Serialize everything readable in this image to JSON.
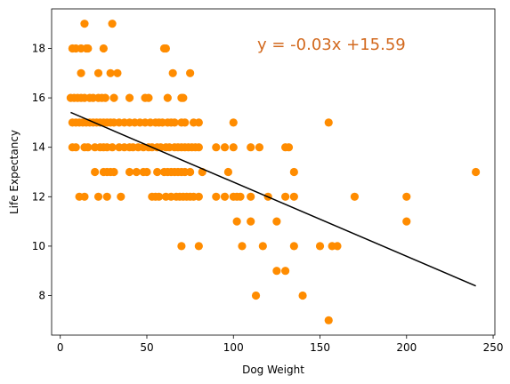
{
  "chart_data": {
    "type": "scatter",
    "title": "",
    "xlabel": "Dog Weight",
    "ylabel": "Life Expectancy",
    "xlim": [
      -5,
      251
    ],
    "ylim": [
      6.4,
      19.6
    ],
    "xticks": [
      0,
      50,
      100,
      150,
      200,
      250
    ],
    "yticks": [
      8,
      10,
      12,
      14,
      16,
      18
    ],
    "grid": false,
    "point_color": "#ff8c00",
    "line_color": "#000000",
    "annotation": {
      "text": "y = -0.03x +15.59",
      "color": "#d2691e"
    },
    "regression": {
      "slope": -0.03,
      "intercept": 15.59,
      "x_range": [
        6,
        240
      ]
    },
    "points": [
      [
        7,
        18
      ],
      [
        9,
        18
      ],
      [
        12,
        18
      ],
      [
        15,
        18
      ],
      [
        16,
        18
      ],
      [
        14,
        19
      ],
      [
        30,
        19
      ],
      [
        25,
        18
      ],
      [
        60,
        18
      ],
      [
        61,
        18
      ],
      [
        12,
        17
      ],
      [
        22,
        17
      ],
      [
        29,
        17
      ],
      [
        33,
        17
      ],
      [
        65,
        17
      ],
      [
        75,
        17
      ],
      [
        6,
        16
      ],
      [
        8,
        16
      ],
      [
        10,
        16
      ],
      [
        12,
        16
      ],
      [
        14,
        16
      ],
      [
        17,
        16
      ],
      [
        19,
        16
      ],
      [
        22,
        16
      ],
      [
        24,
        16
      ],
      [
        26,
        16
      ],
      [
        31,
        16
      ],
      [
        40,
        16
      ],
      [
        49,
        16
      ],
      [
        51,
        16
      ],
      [
        62,
        16
      ],
      [
        70,
        16
      ],
      [
        71,
        16
      ],
      [
        7,
        15
      ],
      [
        9,
        15
      ],
      [
        11,
        15
      ],
      [
        13,
        15
      ],
      [
        15,
        15
      ],
      [
        17,
        15
      ],
      [
        19,
        15
      ],
      [
        21,
        15
      ],
      [
        23,
        15
      ],
      [
        25,
        15
      ],
      [
        27,
        15
      ],
      [
        29,
        15
      ],
      [
        31,
        15
      ],
      [
        34,
        15
      ],
      [
        37,
        15
      ],
      [
        40,
        15
      ],
      [
        43,
        15
      ],
      [
        46,
        15
      ],
      [
        49,
        15
      ],
      [
        52,
        15
      ],
      [
        55,
        15
      ],
      [
        57,
        15
      ],
      [
        59,
        15
      ],
      [
        62,
        15
      ],
      [
        64,
        15
      ],
      [
        66,
        15
      ],
      [
        70,
        15
      ],
      [
        72,
        15
      ],
      [
        77,
        15
      ],
      [
        80,
        15
      ],
      [
        100,
        15
      ],
      [
        155,
        15
      ],
      [
        7,
        14
      ],
      [
        9,
        14
      ],
      [
        14,
        14
      ],
      [
        16,
        14
      ],
      [
        20,
        14
      ],
      [
        23,
        14
      ],
      [
        25,
        14
      ],
      [
        27,
        14
      ],
      [
        30,
        14
      ],
      [
        34,
        14
      ],
      [
        37,
        14
      ],
      [
        40,
        14
      ],
      [
        42,
        14
      ],
      [
        45,
        14
      ],
      [
        48,
        14
      ],
      [
        51,
        14
      ],
      [
        53,
        14
      ],
      [
        56,
        14
      ],
      [
        58,
        14
      ],
      [
        61,
        14
      ],
      [
        63,
        14
      ],
      [
        66,
        14
      ],
      [
        68,
        14
      ],
      [
        70,
        14
      ],
      [
        72,
        14
      ],
      [
        74,
        14
      ],
      [
        76,
        14
      ],
      [
        78,
        14
      ],
      [
        80,
        14
      ],
      [
        90,
        14
      ],
      [
        95,
        14
      ],
      [
        100,
        14
      ],
      [
        110,
        14
      ],
      [
        115,
        14
      ],
      [
        130,
        14
      ],
      [
        132,
        14
      ],
      [
        20,
        13
      ],
      [
        25,
        13
      ],
      [
        27,
        13
      ],
      [
        29,
        13
      ],
      [
        31,
        13
      ],
      [
        40,
        13
      ],
      [
        44,
        13
      ],
      [
        48,
        13
      ],
      [
        50,
        13
      ],
      [
        56,
        13
      ],
      [
        60,
        13
      ],
      [
        62,
        13
      ],
      [
        64,
        13
      ],
      [
        66,
        13
      ],
      [
        68,
        13
      ],
      [
        70,
        13
      ],
      [
        72,
        13
      ],
      [
        75,
        13
      ],
      [
        82,
        13
      ],
      [
        97,
        13
      ],
      [
        135,
        13
      ],
      [
        11,
        12
      ],
      [
        14,
        12
      ],
      [
        22,
        12
      ],
      [
        27,
        12
      ],
      [
        35,
        12
      ],
      [
        53,
        12
      ],
      [
        55,
        12
      ],
      [
        57,
        12
      ],
      [
        61,
        12
      ],
      [
        64,
        12
      ],
      [
        67,
        12
      ],
      [
        69,
        12
      ],
      [
        71,
        12
      ],
      [
        73,
        12
      ],
      [
        75,
        12
      ],
      [
        77,
        12
      ],
      [
        80,
        12
      ],
      [
        90,
        12
      ],
      [
        95,
        12
      ],
      [
        100,
        12
      ],
      [
        102,
        12
      ],
      [
        104,
        12
      ],
      [
        110,
        12
      ],
      [
        120,
        12
      ],
      [
        130,
        12
      ],
      [
        135,
        12
      ],
      [
        170,
        12
      ],
      [
        200,
        12
      ],
      [
        102,
        11
      ],
      [
        110,
        11
      ],
      [
        125,
        11
      ],
      [
        200,
        11
      ],
      [
        70,
        10
      ],
      [
        80,
        10
      ],
      [
        105,
        10
      ],
      [
        117,
        10
      ],
      [
        135,
        10
      ],
      [
        150,
        10
      ],
      [
        157,
        10
      ],
      [
        160,
        10
      ],
      [
        125,
        9
      ],
      [
        130,
        9
      ],
      [
        113,
        8
      ],
      [
        140,
        8
      ],
      [
        155,
        7
      ],
      [
        240,
        13
      ]
    ]
  }
}
